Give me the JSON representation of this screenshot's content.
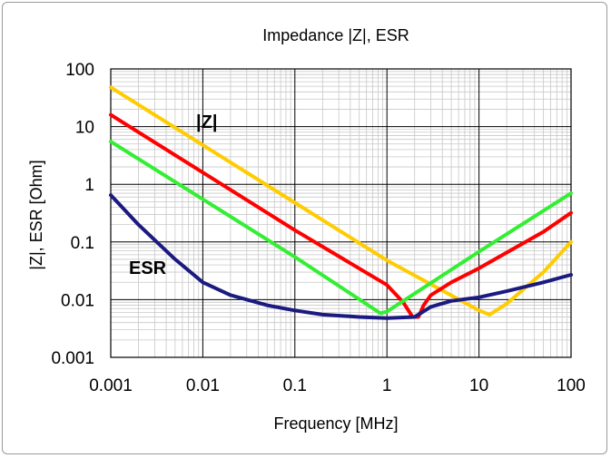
{
  "chart_data": {
    "type": "line",
    "title": "Impedance |Z|,  ESR",
    "xlabel": "Frequency [MHz]",
    "ylabel": "|Z|, ESR [Ohm]",
    "x_scale": "log",
    "y_scale": "log",
    "xlim": [
      0.001,
      100
    ],
    "ylim": [
      0.001,
      100
    ],
    "grid": true,
    "x_ticks": [
      "0.001",
      "0.01",
      "0.1",
      "1",
      "10",
      "100"
    ],
    "y_ticks": [
      "0.001",
      "0.01",
      "0.1",
      "1",
      "10",
      "100"
    ],
    "colors": {
      "ESR": "#1a1a80",
      "Z_red": "#ff0000",
      "Z_green": "#33ee33",
      "Z_yellow": "#ffcc00"
    },
    "annotations": {
      "z_label": "|Z|",
      "esr_label": "ESR"
    },
    "series": [
      {
        "key": "Z_yellow",
        "x": [
          0.001,
          0.01,
          0.1,
          1,
          10,
          13,
          20,
          50,
          100
        ],
        "y": [
          48,
          4.8,
          0.48,
          0.048,
          0.0065,
          0.0055,
          0.0085,
          0.03,
          0.1
        ]
      },
      {
        "key": "Z_red",
        "x": [
          0.001,
          0.01,
          0.1,
          1,
          1.5,
          1.9,
          2.2,
          2.5,
          3,
          5,
          10,
          50,
          100
        ],
        "y": [
          16,
          1.6,
          0.16,
          0.018,
          0.009,
          0.005,
          0.005,
          0.008,
          0.012,
          0.02,
          0.035,
          0.15,
          0.32
        ]
      },
      {
        "key": "Z_green",
        "x": [
          0.001,
          0.01,
          0.1,
          0.85,
          1,
          10,
          100
        ],
        "y": [
          5.5,
          0.55,
          0.055,
          0.0058,
          0.0062,
          0.068,
          0.7
        ]
      },
      {
        "key": "ESR",
        "x": [
          0.001,
          0.002,
          0.005,
          0.01,
          0.02,
          0.05,
          0.1,
          0.2,
          0.5,
          1,
          2,
          3,
          5,
          10,
          20,
          50,
          100
        ],
        "y": [
          0.65,
          0.2,
          0.05,
          0.02,
          0.012,
          0.008,
          0.0065,
          0.0055,
          0.005,
          0.0048,
          0.005,
          0.0075,
          0.0095,
          0.011,
          0.014,
          0.02,
          0.027
        ]
      }
    ]
  }
}
